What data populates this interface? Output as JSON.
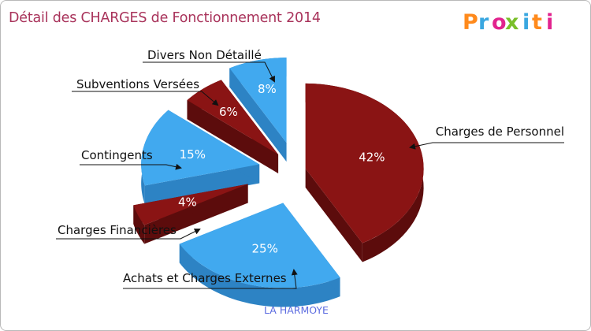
{
  "chart_data": {
    "type": "pie",
    "title": "Détail des CHARGES de Fonctionnement 2014",
    "subtitle": "LA HARMOYE",
    "slices": [
      {
        "label": "Charges de Personnel",
        "value": 42,
        "percent_label": "42%",
        "color": "#8a1414"
      },
      {
        "label": "Achats et Charges Externes",
        "value": 25,
        "percent_label": "25%",
        "color": "#41a9ef"
      },
      {
        "label": "Charges Financières",
        "value": 4,
        "percent_label": "4%",
        "color": "#8a1414"
      },
      {
        "label": "Contingents",
        "value": 15,
        "percent_label": "15%",
        "color": "#41a9ef"
      },
      {
        "label": "Subventions Versées",
        "value": 6,
        "percent_label": "6%",
        "color": "#8a1414"
      },
      {
        "label": "Divers Non Détaillé",
        "value": 8,
        "percent_label": "8%",
        "color": "#41a9ef"
      }
    ],
    "legend": "none"
  },
  "branding": {
    "logo_text": "Proxiti",
    "logo_colors": [
      "#ff8a1c",
      "#3aa7e0",
      "#e2238e",
      "#7abf2a",
      "#3aa7e0",
      "#ff8a1c",
      "#e2238e"
    ]
  }
}
